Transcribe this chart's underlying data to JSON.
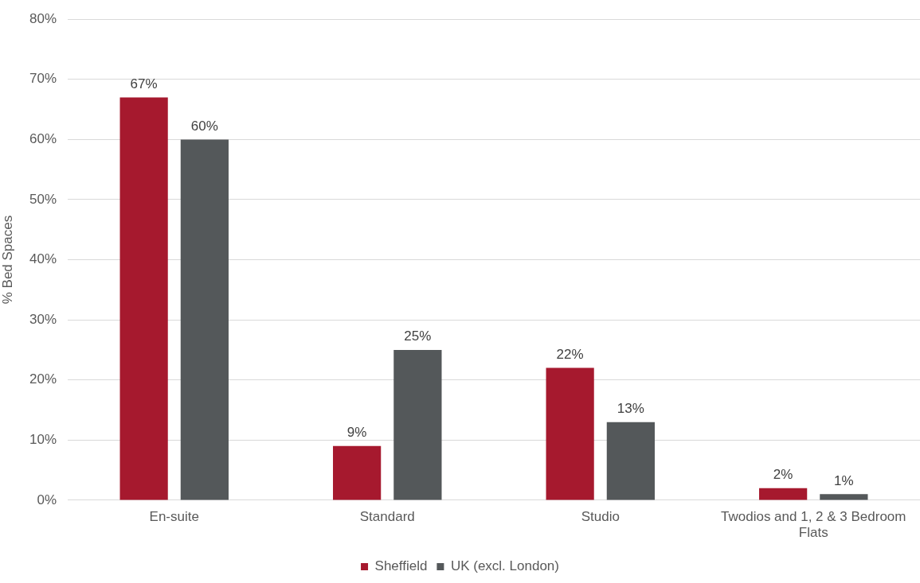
{
  "chart_data": {
    "type": "bar",
    "ylabel": "% Bed Spaces",
    "categories": [
      "En-suite",
      "Standard",
      "Studio",
      "Twodios and 1, 2 & 3 Bedroom Flats"
    ],
    "series": [
      {
        "name": "Sheffield",
        "color": "#a6192e",
        "values": [
          67,
          9,
          22,
          2
        ],
        "value_labels": [
          "67%",
          "9%",
          "22%",
          "2%"
        ]
      },
      {
        "name": "UK (excl. London)",
        "color": "#54585a",
        "values": [
          60,
          25,
          13,
          1
        ],
        "value_labels": [
          "60%",
          "25%",
          "13%",
          "1%"
        ]
      }
    ],
    "ylim": [
      0,
      80
    ],
    "yticks": [
      {
        "value": 0,
        "label": "0%"
      },
      {
        "value": 10,
        "label": "10%"
      },
      {
        "value": 20,
        "label": "20%"
      },
      {
        "value": 30,
        "label": "30%"
      },
      {
        "value": 40,
        "label": "40%"
      },
      {
        "value": 50,
        "label": "50%"
      },
      {
        "value": 60,
        "label": "60%"
      },
      {
        "value": 70,
        "label": "70%"
      },
      {
        "value": 80,
        "label": "80%"
      }
    ],
    "grid": "y",
    "legend": "bottom"
  }
}
